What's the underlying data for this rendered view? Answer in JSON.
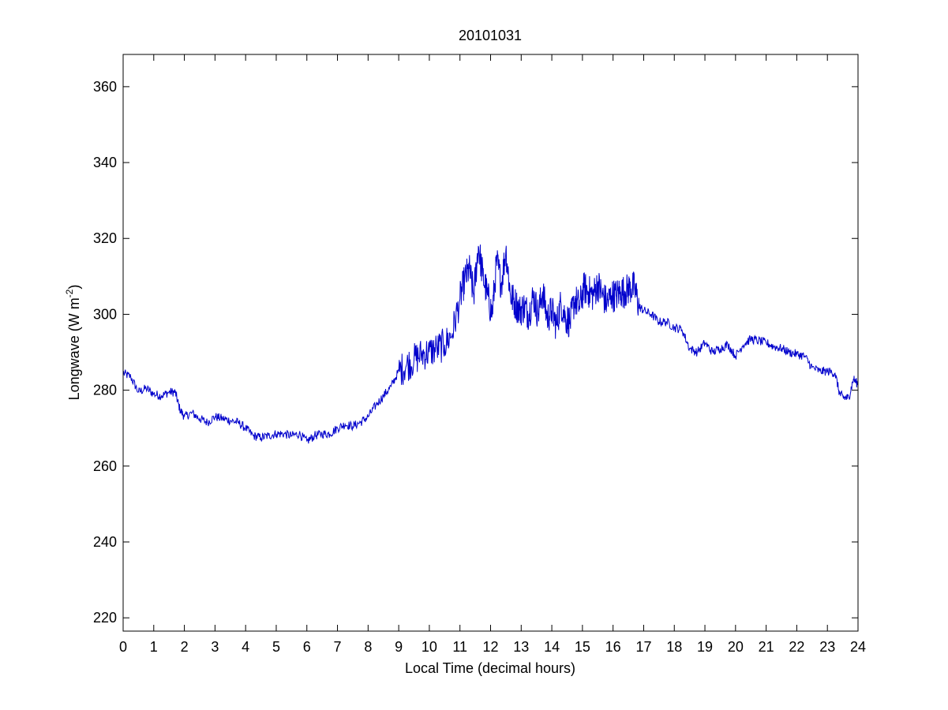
{
  "chart_data": {
    "type": "line",
    "title": "20101031",
    "xlabel": "Local Time (decimal hours)",
    "ylabel": "Longwave (W m",
    "ylabel_exponent": "-2",
    "ylabel_close": ")",
    "xlim": [
      0,
      24
    ],
    "ylim": [
      216.5,
      368.5
    ],
    "xticks": [
      0,
      1,
      2,
      3,
      4,
      5,
      6,
      7,
      8,
      9,
      10,
      11,
      12,
      13,
      14,
      15,
      16,
      17,
      18,
      19,
      20,
      21,
      22,
      23,
      24
    ],
    "yticks": [
      220,
      240,
      260,
      280,
      300,
      320,
      340,
      360
    ],
    "grid": false,
    "line_color": "#0000cc",
    "series": [
      {
        "x": [
          0,
          0.25,
          0.5,
          0.75,
          1.0,
          1.25,
          1.5,
          1.7,
          1.85,
          2.0,
          2.25,
          2.5,
          2.75,
          3.0,
          3.25,
          3.5,
          3.75,
          4.0,
          4.25,
          4.5,
          4.75,
          5.0,
          5.25,
          5.5,
          5.75,
          6.0,
          6.25,
          6.5,
          6.75,
          7.0,
          7.25,
          7.5,
          7.75,
          8.0,
          8.25,
          8.5,
          8.75,
          9.0,
          9.25,
          9.5,
          9.75,
          10.0,
          10.25,
          10.5,
          10.75,
          11.0,
          11.15,
          11.3,
          11.45,
          11.6,
          11.75,
          11.9,
          12.05,
          12.2,
          12.35,
          12.5,
          12.65,
          12.8,
          12.95,
          13.1,
          13.25,
          13.4,
          13.55,
          13.7,
          13.85,
          14.0,
          14.15,
          14.3,
          14.45,
          14.6,
          14.75,
          14.9,
          15.05,
          15.2,
          15.35,
          15.5,
          15.65,
          15.8,
          15.95,
          16.1,
          16.25,
          16.4,
          16.55,
          16.7,
          16.85,
          17.0,
          17.25,
          17.5,
          17.75,
          18.0,
          18.25,
          18.5,
          18.75,
          19.0,
          19.25,
          19.5,
          19.75,
          20.0,
          20.25,
          20.5,
          20.75,
          21.0,
          21.25,
          21.5,
          21.75,
          22.0,
          22.25,
          22.5,
          22.75,
          23.0,
          23.25,
          23.4,
          23.55,
          23.7,
          23.85,
          24.0
        ],
        "y": [
          284.5,
          283.5,
          279.5,
          280.5,
          279,
          278.5,
          279.5,
          279.5,
          275,
          273,
          274,
          272.5,
          271.5,
          273,
          272.5,
          272,
          271.5,
          270,
          268,
          267.5,
          268,
          268.5,
          268.5,
          268,
          268.5,
          266.5,
          268,
          268.5,
          268.5,
          270,
          271,
          270.5,
          271.5,
          273,
          276,
          278.5,
          281,
          285,
          286.5,
          288,
          289.5,
          290,
          291,
          292,
          295,
          304,
          309,
          312,
          305,
          318,
          310,
          305,
          300,
          314,
          308,
          317,
          305,
          303,
          301,
          302,
          300,
          305,
          300,
          306,
          299,
          301,
          297,
          303,
          299,
          298,
          304,
          302,
          307,
          306,
          305,
          308,
          305,
          303,
          305,
          305,
          306,
          306,
          307,
          307,
          302,
          301,
          300,
          298,
          298,
          296.5,
          296,
          291,
          290,
          292.5,
          290,
          291,
          292,
          289,
          292,
          293.5,
          293,
          292.5,
          291.5,
          291,
          290,
          289.5,
          289,
          286,
          285,
          285,
          284.5,
          279,
          278,
          278,
          283,
          281.5
        ]
      }
    ]
  }
}
